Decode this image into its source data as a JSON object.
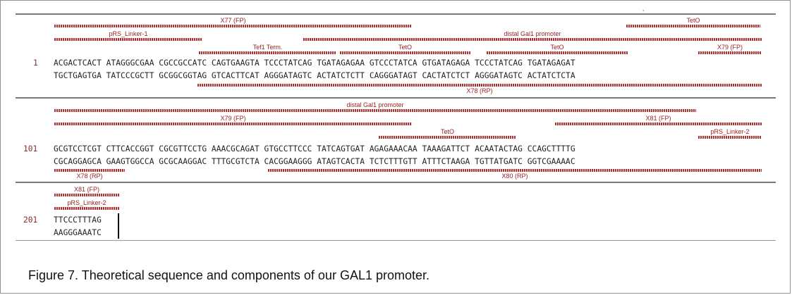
{
  "caption": "Figure 7. Theoretical sequence and components of our GAL1 promoter.",
  "corner_mark": ",",
  "blocks": [
    {
      "number": "1",
      "forward": "ACGACTCACT ATAGGGCGAA CGCCGCCATC CAGTGAAGTA TCCCTATCAG TGATAGAGAA GTCCCTATCA GTGATAGAGA TCCCTATCAG TGATAGAGAT",
      "reverse": "TGCTGAGTGA TATCCCGCTT GCGGCGGTAG GTCACTTCAT AGGGATAGTC ACTATCTCTT CAGGGATAGT CACTATCTCT AGGGATAGTC ACTATCTCTA",
      "features_above": [
        {
          "label": "X77 (FP)"
        },
        {
          "label": "TetO"
        },
        {
          "label": "pRS_Linker-1"
        },
        {
          "label": "distal Gal1 promoter"
        },
        {
          "label": "Tef1 Term."
        },
        {
          "label": "TetO"
        },
        {
          "label": "TetO"
        },
        {
          "label": "X79 (FP)"
        }
      ],
      "features_below": [
        {
          "label": "X78 (RP)"
        }
      ]
    },
    {
      "number": "101",
      "forward": "GCGTCCTCGT CTTCACCGGT CGCGTTCCTG AAACGCAGAT GTGCCTTCCC TATCAGTGAT AGAGAAACAA TAAAGATTCT ACAATACTAG CCAGCTTTTG",
      "reverse": "CGCAGGAGCA GAAGTGGCCA GCGCAAGGAC TTTGCGTCTA CACGGAAGGG ATAGTCACTA TCTCTTTGTT ATTTCTAAGA TGTTATGATC GGTCGAAAAC",
      "features_above": [
        {
          "label": "distal Gal1 promoter"
        },
        {
          "label": "X79 (FP)"
        },
        {
          "label": "X81 (FP)"
        },
        {
          "label": "TetO"
        },
        {
          "label": "pRS_Linker-2"
        }
      ],
      "features_below": [
        {
          "label": "X78 (RP)"
        },
        {
          "label": "X80 (RP)"
        }
      ]
    },
    {
      "number": "201",
      "forward": "TTCCCTTTAG",
      "reverse": "AAGGGAAATC",
      "features_above": [
        {
          "label": "X81 (FP)"
        },
        {
          "label": "pRS_Linker-2"
        }
      ],
      "features_below": []
    }
  ]
}
